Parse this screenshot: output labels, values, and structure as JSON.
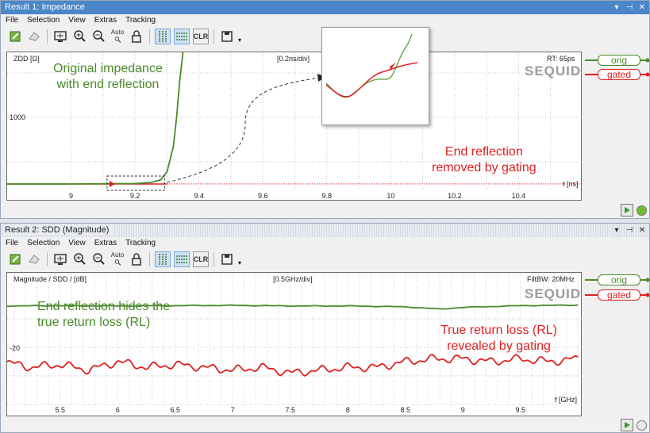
{
  "panel1": {
    "title": "Result 1: Impedance",
    "window_buttons": [
      "▾",
      "⊣",
      "✕"
    ],
    "menu": [
      "File",
      "Selection",
      "View",
      "Extras",
      "Tracking"
    ],
    "toolbar": {
      "auto_label": "Auto",
      "clr_label": "CLR"
    },
    "plot": {
      "ylabel": "ZDD [Ω]",
      "scale": "[0.2ns/div]",
      "info": "RT: 65ps",
      "ytick": "1000",
      "xunit": "t [ns]",
      "brand": "SEQUID"
    },
    "annotations": {
      "orig": "Original impedance\nwith end reflection",
      "gated": "End reflection\nremoved by gating"
    },
    "legend": [
      {
        "label": "orig",
        "color": "#4a8a2a"
      },
      {
        "label": "gated",
        "color": "#e02020"
      }
    ]
  },
  "panel2": {
    "title": "Result 2: SDD (Magnitude)",
    "window_buttons": [
      "▾",
      "⊣",
      "✕"
    ],
    "menu": [
      "File",
      "Selection",
      "View",
      "Extras",
      "Tracking"
    ],
    "toolbar": {
      "auto_label": "Auto",
      "clr_label": "CLR"
    },
    "plot": {
      "ylabel": "Magnitude / SDD / [dB]",
      "scale": "[0.5GHz/div]",
      "info": "FiltBW: 20MHz",
      "ytick": "-20",
      "xunit": "f [GHz]",
      "brand": "SEQUID"
    },
    "annotations": {
      "orig": "End reflection hides the\ntrue return loss (RL)",
      "gated": "True return loss (RL)\nrevealed by gating"
    },
    "legend": [
      {
        "label": "orig",
        "color": "#4a8a2a"
      },
      {
        "label": "gated",
        "color": "#e02020"
      }
    ]
  },
  "chart_data": [
    {
      "type": "line",
      "xlabel": "t [ns]",
      "ylabel": "ZDD [Ω]",
      "x_ticks": [
        9,
        9.2,
        9.4,
        9.6,
        9.8,
        10,
        10.2,
        10.4
      ],
      "y_ticks": [
        1000
      ],
      "xlim": [
        8.8,
        10.6
      ],
      "series": [
        {
          "name": "orig",
          "color": "#4a8a2a",
          "x": [
            8.8,
            9.0,
            9.1,
            9.2,
            9.25,
            9.28,
            9.3,
            9.32,
            9.33,
            9.34,
            9.35
          ],
          "y": [
            95,
            95,
            98,
            102,
            115,
            150,
            260,
            600,
            1000,
            1500,
            2300
          ]
        },
        {
          "name": "gated",
          "color": "#e02020",
          "x": [
            8.8,
            9.0,
            9.2,
            9.4,
            9.6,
            9.8,
            10.0,
            10.2,
            10.4,
            10.6
          ],
          "y": [
            95,
            95,
            96,
            96,
            96,
            96,
            96,
            96,
            96,
            96
          ]
        }
      ]
    },
    {
      "type": "line",
      "xlabel": "f [GHz]",
      "ylabel": "Magnitude / SDD / [dB]",
      "x_ticks": [
        5.5,
        6,
        6.5,
        7,
        7.5,
        8,
        8.5,
        9,
        9.5
      ],
      "y_ticks": [
        -20
      ],
      "xlim": [
        5.04,
        10.04
      ],
      "series": [
        {
          "name": "orig",
          "color": "#4a8a2a",
          "x": [
            5.0,
            5.5,
            6.0,
            6.5,
            7.0,
            7.5,
            8.0,
            8.5,
            8.8,
            9.0,
            9.5,
            10.0
          ],
          "y": [
            -5.5,
            -5.4,
            -5.5,
            -5.4,
            -5.3,
            -5.5,
            -5.5,
            -5.8,
            -6.6,
            -6.0,
            -5.4,
            -5.2
          ]
        },
        {
          "name": "gated",
          "color": "#e02020",
          "x": [
            5.0,
            5.25,
            5.5,
            5.75,
            6.0,
            6.25,
            6.5,
            6.75,
            7.0,
            7.25,
            7.5,
            7.75,
            8.0,
            8.25,
            8.5,
            8.75,
            9.0,
            9.25,
            9.5,
            9.75,
            10.0
          ],
          "y": [
            -25,
            -27,
            -26,
            -28,
            -25,
            -27,
            -26,
            -27,
            -28,
            -27,
            -29,
            -28,
            -27,
            -27,
            -25,
            -24,
            -24,
            -25,
            -24,
            -25,
            -24
          ]
        }
      ]
    }
  ]
}
